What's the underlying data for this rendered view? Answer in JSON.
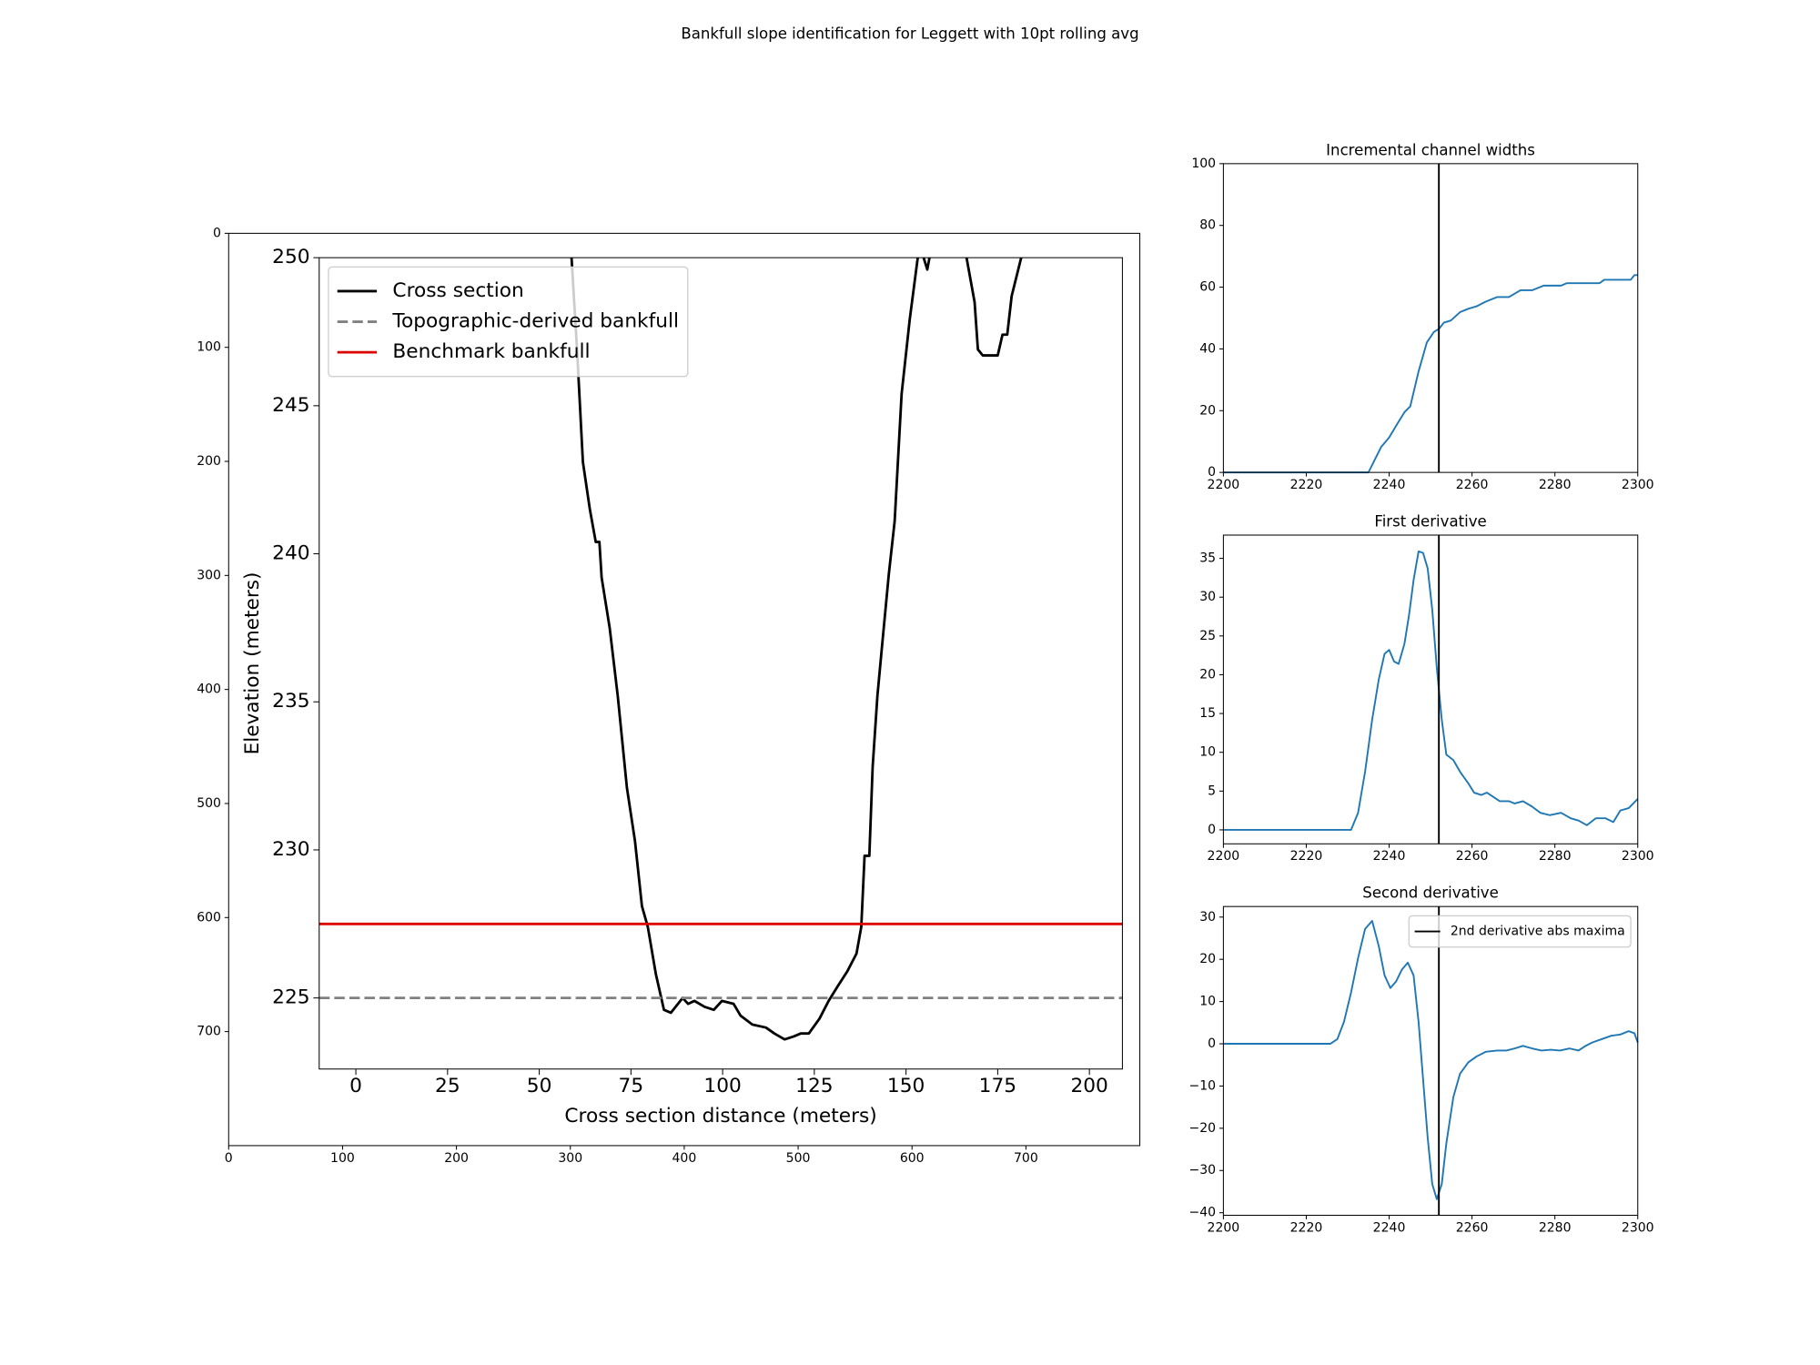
{
  "title": "Bankfull slope identification for Leggett with 10pt rolling avg",
  "chart_data": [
    {
      "type": "image",
      "xlim": [
        0,
        800
      ],
      "ylim": [
        800,
        0
      ],
      "xticks": [
        0,
        100,
        200,
        300,
        400,
        500,
        600,
        700
      ],
      "yticks": [
        0,
        100,
        200,
        300,
        400,
        500,
        600,
        700
      ]
    },
    {
      "type": "line",
      "x_label": "Cross section distance (meters)",
      "y_label": "Elevation (meters)",
      "xlim": [
        -10,
        209
      ],
      "ylim": [
        222.6,
        250
      ],
      "xticks": [
        0,
        25,
        50,
        75,
        100,
        125,
        150,
        175,
        200
      ],
      "yticks": [
        225,
        230,
        235,
        240,
        245,
        250
      ],
      "x": [
        58.8,
        60.3,
        61.9,
        63.8,
        65.4,
        66.4,
        67,
        69.2,
        71.4,
        73.9,
        76.1,
        78,
        79.6,
        81.8,
        84,
        85.9,
        89.1,
        90.6,
        92.3,
        95.1,
        97.6,
        99.8,
        103,
        104.9,
        108.1,
        111.8,
        114.1,
        116.9,
        119.4,
        121.3,
        123.5,
        126.4,
        128.9,
        131.4,
        134,
        136.5,
        137.8,
        138.7,
        140,
        140.9,
        142.2,
        143.4,
        145.3,
        146.9,
        148.8,
        151,
        153.2,
        null,
        154.8,
        155.8,
        156.4,
        null,
        166.5,
        168.7,
        169.6,
        170.9,
        172.5,
        175,
        176.3,
        177.6,
        178.8,
        181.4
      ],
      "series": [
        {
          "name": "Cross section",
          "color": "#000000",
          "values": [
            250,
            246.9,
            243.1,
            241.5,
            240.4,
            240.4,
            239.2,
            237.5,
            235.2,
            232.1,
            230.3,
            228.1,
            227.4,
            225.8,
            224.6,
            224.5,
            225,
            224.8,
            224.9,
            224.7,
            224.6,
            224.9,
            224.8,
            224.4,
            224.1,
            224,
            223.8,
            223.6,
            223.7,
            223.8,
            223.8,
            224.3,
            224.9,
            225.4,
            225.9,
            226.5,
            227.4,
            229.8,
            229.8,
            232.8,
            235.2,
            236.8,
            239.3,
            241.1,
            245.4,
            247.9,
            250,
            null,
            250,
            249.6,
            250,
            null,
            250,
            248.5,
            246.9,
            246.7,
            246.7,
            246.7,
            247.4,
            247.4,
            248.7,
            250
          ]
        }
      ],
      "hlines": [
        {
          "name": "Topographic-derived bankfull",
          "y": 225,
          "color": "#808080",
          "dashed": true
        },
        {
          "name": "Benchmark bankfull",
          "y": 227.5,
          "color": "#dd0000",
          "dashed": false
        }
      ],
      "legend": "upper left"
    },
    {
      "type": "line",
      "title": "Incremental channel widths",
      "xlim": [
        2200,
        2300
      ],
      "ylim": [
        0,
        100
      ],
      "xticks": [
        2200,
        2220,
        2240,
        2260,
        2280,
        2300
      ],
      "yticks": [
        0,
        20,
        40,
        60,
        80,
        100
      ],
      "x": [
        2200,
        2235,
        2238.1,
        2240,
        2242,
        2243.7,
        2245.1,
        2247.1,
        2249.1,
        2250.8,
        2252.1,
        2253.2,
        2254.9,
        2257.1,
        2259.1,
        2261.1,
        2263.3,
        2266.1,
        2268.9,
        2271.7,
        2274.5,
        2277.3,
        2281.5,
        2282.9,
        2290.8,
        2291.9,
        2298.3,
        2299.2,
        2300
      ],
      "series": [
        {
          "color": "#1f77b4",
          "values": [
            0,
            0,
            8.3,
            11.3,
            15.8,
            19.5,
            21.4,
            32.7,
            42.1,
            45.5,
            46.6,
            48.5,
            49.2,
            51.9,
            53,
            53.8,
            55.3,
            56.8,
            56.8,
            59,
            59,
            60.5,
            60.5,
            61.3,
            61.3,
            62.4,
            62.4,
            63.9,
            63.9
          ]
        }
      ],
      "vlines": [
        {
          "x": 2252,
          "color": "#000000"
        }
      ]
    },
    {
      "type": "line",
      "title": "First derivative",
      "xlim": [
        2200,
        2300
      ],
      "ylim": [
        -1.8,
        38
      ],
      "xticks": [
        2200,
        2220,
        2240,
        2260,
        2280,
        2300
      ],
      "yticks": [
        0,
        5,
        10,
        15,
        20,
        25,
        30,
        35
      ],
      "x": [
        2200,
        2230.8,
        2232.5,
        2234.2,
        2235.9,
        2237.5,
        2238.9,
        2240,
        2241.2,
        2242.3,
        2243.7,
        2244.8,
        2245.9,
        2247.1,
        2248.2,
        2249.3,
        2250.4,
        2251.5,
        2252.7,
        2253.8,
        2255.5,
        2257.1,
        2259.1,
        2260.5,
        2262.2,
        2263.6,
        2265.3,
        2266.7,
        2268.9,
        2270.3,
        2272.3,
        2274.5,
        2276.5,
        2278.7,
        2281.5,
        2283.8,
        2285.7,
        2287.7,
        2289.9,
        2292.2,
        2294.1,
        2295.8,
        2297.8,
        2300
      ],
      "series": [
        {
          "color": "#1f77b4",
          "values": [
            0,
            0,
            2.2,
            7.5,
            14.2,
            19.4,
            22.7,
            23.2,
            21.7,
            21.4,
            24,
            27.7,
            32.2,
            35.9,
            35.7,
            33.7,
            28.4,
            20.9,
            14.2,
            9.7,
            9,
            7.5,
            6,
            4.8,
            4.5,
            4.8,
            4.2,
            3.7,
            3.7,
            3.4,
            3.7,
            3,
            2.2,
            1.9,
            2.2,
            1.5,
            1.2,
            0.6,
            1.5,
            1.5,
            1,
            2.5,
            2.8,
            4
          ]
        }
      ],
      "vlines": [
        {
          "x": 2252,
          "color": "#000000"
        }
      ]
    },
    {
      "type": "line",
      "title": "Second derivative",
      "xlim": [
        2200,
        2300
      ],
      "ylim": [
        -40.6,
        32.5
      ],
      "xticks": [
        2200,
        2220,
        2240,
        2260,
        2280,
        2300
      ],
      "yticks": [
        {
          "value": -40,
          "label": "−40"
        },
        {
          "value": -30,
          "label": "−30"
        },
        {
          "value": -20,
          "label": "−20"
        },
        {
          "value": -10,
          "label": "−10"
        },
        0,
        10,
        20,
        30
      ],
      "x": [
        2200,
        2225.8,
        2227.5,
        2229.1,
        2230.8,
        2232.5,
        2234.2,
        2235.9,
        2237.5,
        2238.9,
        2240.3,
        2241.7,
        2243.1,
        2244.5,
        2245.9,
        2247.1,
        2248.2,
        2249.3,
        2250.4,
        2251.5,
        2252.7,
        2253.8,
        2255.5,
        2257.1,
        2259.1,
        2261.1,
        2263.3,
        2266.1,
        2268.3,
        2270.3,
        2272.3,
        2274.5,
        2276.8,
        2279,
        2281.2,
        2283.5,
        2285.7,
        2287.4,
        2289,
        2291.3,
        2293.6,
        2295.8,
        2297.8,
        2299.2,
        2300
      ],
      "series": [
        {
          "color": "#1f77b4",
          "values": [
            0,
            0,
            1.1,
            5.2,
            12.1,
            20.3,
            27.2,
            29.1,
            23.1,
            16.2,
            13.2,
            14.8,
            17.6,
            19.2,
            16.2,
            5.2,
            -8.5,
            -22.2,
            -33.2,
            -36.8,
            -33.2,
            -23.6,
            -12.6,
            -7.1,
            -4.4,
            -3,
            -1.9,
            -1.6,
            -1.6,
            -1.1,
            -0.5,
            -1.1,
            -1.6,
            -1.4,
            -1.6,
            -1.1,
            -1.6,
            -0.5,
            0.3,
            1.1,
            1.9,
            2.2,
            3,
            2.5,
            0.3
          ]
        }
      ],
      "vlines": [
        {
          "name": "2nd derivative abs maxima",
          "x": 2252,
          "color": "#000000"
        }
      ],
      "legend": "upper right"
    }
  ]
}
